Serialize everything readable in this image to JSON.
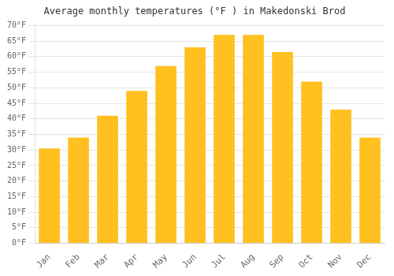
{
  "chart_data": {
    "type": "bar",
    "title": "Average monthly temperatures (°F ) in Makedonski Brod",
    "categories": [
      "Jan",
      "Feb",
      "Mar",
      "Apr",
      "May",
      "Jun",
      "Jul",
      "Aug",
      "Sep",
      "Oct",
      "Nov",
      "Dec"
    ],
    "values": [
      30.5,
      34.0,
      41.0,
      49.0,
      57.0,
      63.0,
      67.0,
      67.0,
      61.5,
      52.0,
      43.0,
      34.0
    ],
    "color": "#FFC020",
    "ylim": [
      0,
      70.5
    ],
    "yticks": [
      {
        "value": 0,
        "label": "0°F"
      },
      {
        "value": 5,
        "label": "5°F"
      },
      {
        "value": 10,
        "label": "10°F"
      },
      {
        "value": 15,
        "label": "15°F"
      },
      {
        "value": 20,
        "label": "20°F"
      },
      {
        "value": 25,
        "label": "25°F"
      },
      {
        "value": 30,
        "label": "30°F"
      },
      {
        "value": 35,
        "label": "35°F"
      },
      {
        "value": 40,
        "label": "40°F"
      },
      {
        "value": 45,
        "label": "45°F"
      },
      {
        "value": 50,
        "label": "50°F"
      },
      {
        "value": 55,
        "label": "55°F"
      },
      {
        "value": 60,
        "label": "60°F"
      },
      {
        "value": 65,
        "label": "65°F"
      },
      {
        "value": 70,
        "label": "70°F"
      }
    ],
    "grid": true
  }
}
